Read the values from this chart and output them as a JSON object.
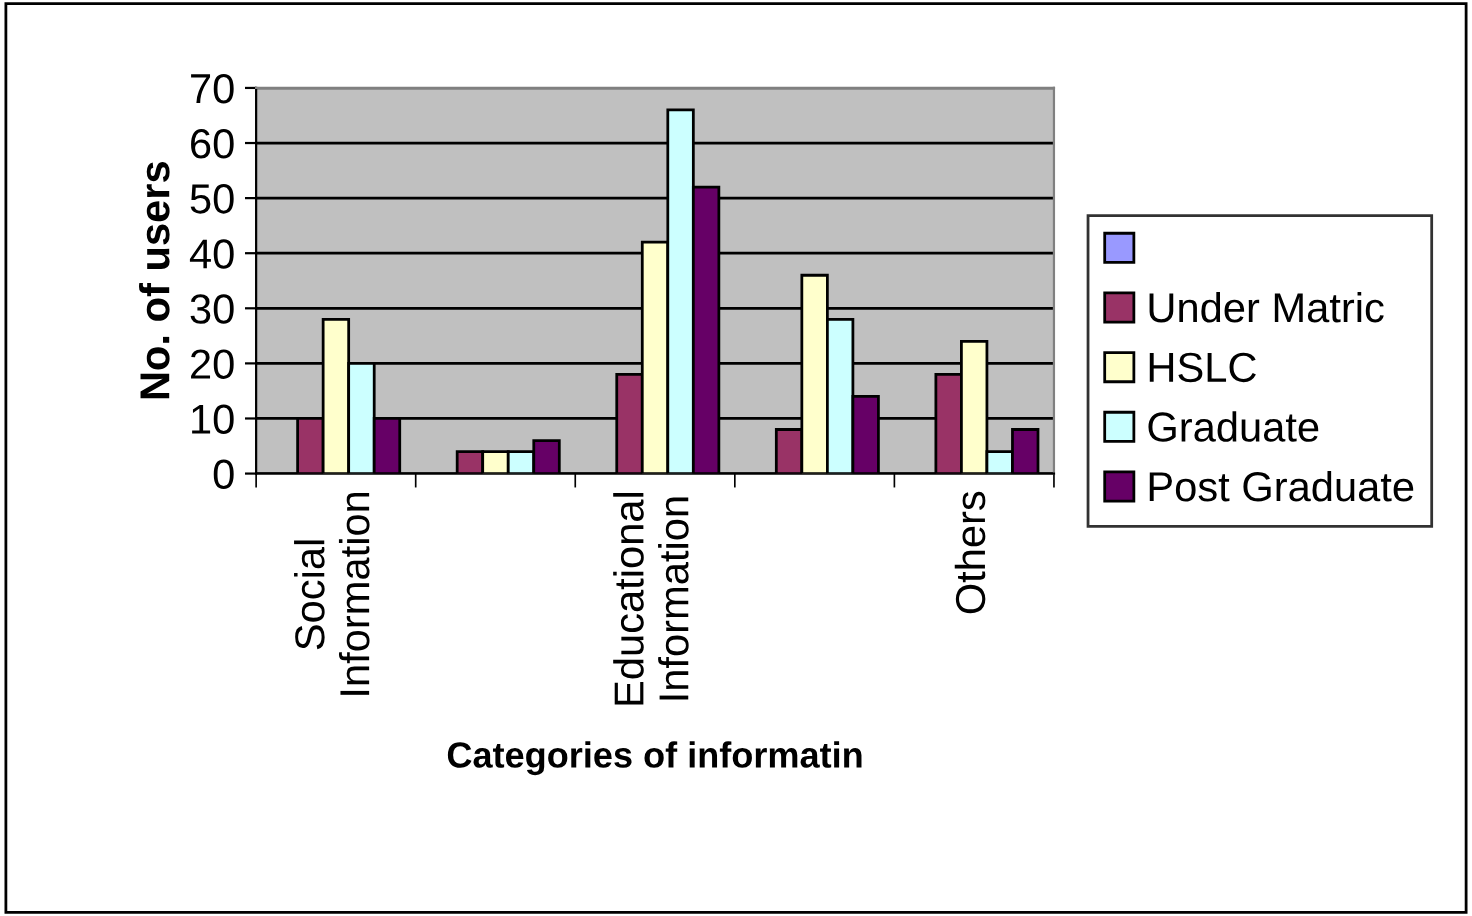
{
  "chart_data": {
    "type": "bar",
    "xlabel": "Categories of informatin",
    "ylabel": "No. of users",
    "categories": [
      "Social Information",
      null,
      "Educational Information",
      null,
      "Others"
    ],
    "series": [
      {
        "color": "#9999ff",
        "values": [
          null,
          null,
          null,
          null,
          null
        ]
      },
      {
        "name": "Under Matric",
        "color": "#993366",
        "values": [
          10,
          4,
          18,
          8,
          18
        ]
      },
      {
        "name": "HSLC",
        "color": "#ffffcc",
        "values": [
          28,
          4,
          42,
          36,
          24
        ]
      },
      {
        "name": "Graduate",
        "color": "#ccffff",
        "values": [
          20,
          4,
          66,
          28,
          4
        ]
      },
      {
        "name": "Post Graduate",
        "color": "#660066",
        "values": [
          10,
          6,
          52,
          14,
          8
        ]
      }
    ],
    "ylim": [
      0,
      70
    ],
    "yticks": [
      0,
      10,
      20,
      30,
      40,
      50,
      60,
      70
    ],
    "grid": "y",
    "legend": "right"
  }
}
